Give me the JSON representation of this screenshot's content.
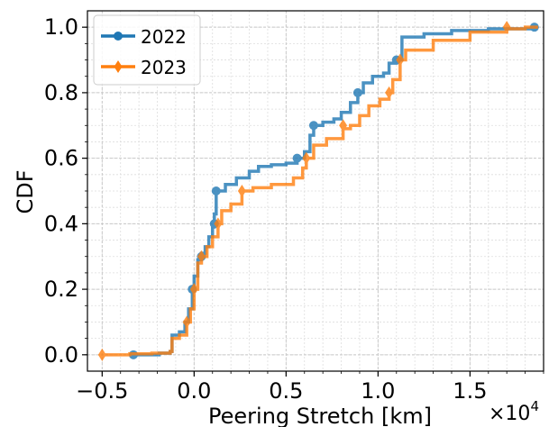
{
  "chart_data": {
    "type": "line",
    "title": "",
    "xlabel": "Peering Stretch [km]",
    "ylabel": "CDF",
    "x_multiplier_label": "×10",
    "x_multiplier_exp": "4",
    "xlim": [
      -5800,
      19000
    ],
    "ylim": [
      -0.05,
      1.05
    ],
    "x_ticks": [
      {
        "value": -5000,
        "label": "−0.5"
      },
      {
        "value": 0,
        "label": "0.0"
      },
      {
        "value": 5000,
        "label": "0.5"
      },
      {
        "value": 10000,
        "label": "1.0"
      },
      {
        "value": 15000,
        "label": "1.5"
      }
    ],
    "y_ticks": [
      {
        "value": 0.0,
        "label": "0.0"
      },
      {
        "value": 0.2,
        "label": "0.2"
      },
      {
        "value": 0.4,
        "label": "0.4"
      },
      {
        "value": 0.6,
        "label": "0.6"
      },
      {
        "value": 0.8,
        "label": "0.8"
      },
      {
        "value": 1.0,
        "label": "1.0"
      }
    ],
    "grid": true,
    "legend_position": "top-left",
    "series": [
      {
        "name": "2022",
        "color": "#1f77b4",
        "marker": "circle",
        "points": [
          [
            -3300,
            0.0
          ],
          [
            -2500,
            0.0
          ],
          [
            -1900,
            0.005
          ],
          [
            -1300,
            0.01
          ],
          [
            -1200,
            0.06
          ],
          [
            -800,
            0.07
          ],
          [
            -500,
            0.1
          ],
          [
            -300,
            0.14
          ],
          [
            -100,
            0.2
          ],
          [
            0,
            0.24
          ],
          [
            200,
            0.29
          ],
          [
            400,
            0.31
          ],
          [
            600,
            0.33
          ],
          [
            800,
            0.36
          ],
          [
            1000,
            0.39
          ],
          [
            1100,
            0.43
          ],
          [
            1200,
            0.5
          ],
          [
            1700,
            0.52
          ],
          [
            2300,
            0.54
          ],
          [
            3000,
            0.56
          ],
          [
            3500,
            0.575
          ],
          [
            4200,
            0.58
          ],
          [
            5000,
            0.585
          ],
          [
            5600,
            0.6
          ],
          [
            6000,
            0.62
          ],
          [
            6300,
            0.67
          ],
          [
            6500,
            0.7
          ],
          [
            7000,
            0.71
          ],
          [
            7600,
            0.72
          ],
          [
            8000,
            0.74
          ],
          [
            8500,
            0.77
          ],
          [
            8900,
            0.8
          ],
          [
            9200,
            0.83
          ],
          [
            9700,
            0.85
          ],
          [
            10300,
            0.86
          ],
          [
            10600,
            0.89
          ],
          [
            11000,
            0.9
          ],
          [
            11300,
            0.97
          ],
          [
            12500,
            0.98
          ],
          [
            14000,
            0.99
          ],
          [
            16000,
            0.995
          ],
          [
            18500,
            1.0
          ]
        ],
        "marker_points": [
          [
            -3300,
            0.0
          ],
          [
            -100,
            0.2
          ],
          [
            400,
            0.3
          ],
          [
            1100,
            0.4
          ],
          [
            1200,
            0.5
          ],
          [
            5600,
            0.6
          ],
          [
            6500,
            0.7
          ],
          [
            8900,
            0.8
          ],
          [
            11000,
            0.9
          ],
          [
            18500,
            1.0
          ]
        ]
      },
      {
        "name": "2023",
        "color": "#ff7f0e",
        "marker": "diamond",
        "points": [
          [
            -5000,
            0.0
          ],
          [
            -3500,
            0.003
          ],
          [
            -2300,
            0.005
          ],
          [
            -1300,
            0.01
          ],
          [
            -1200,
            0.05
          ],
          [
            -800,
            0.06
          ],
          [
            -400,
            0.1
          ],
          [
            -200,
            0.14
          ],
          [
            0,
            0.2
          ],
          [
            200,
            0.28
          ],
          [
            400,
            0.3
          ],
          [
            700,
            0.33
          ],
          [
            1000,
            0.36
          ],
          [
            1300,
            0.4
          ],
          [
            1500,
            0.44
          ],
          [
            2000,
            0.46
          ],
          [
            2600,
            0.5
          ],
          [
            3200,
            0.51
          ],
          [
            4200,
            0.52
          ],
          [
            5400,
            0.54
          ],
          [
            5900,
            0.57
          ],
          [
            6100,
            0.6
          ],
          [
            6500,
            0.64
          ],
          [
            7200,
            0.66
          ],
          [
            8100,
            0.69
          ],
          [
            8500,
            0.7
          ],
          [
            9000,
            0.73
          ],
          [
            9500,
            0.76
          ],
          [
            10100,
            0.78
          ],
          [
            10600,
            0.8
          ],
          [
            10800,
            0.84
          ],
          [
            11200,
            0.9
          ],
          [
            11500,
            0.93
          ],
          [
            13000,
            0.96
          ],
          [
            15000,
            0.985
          ],
          [
            17000,
            0.995
          ],
          [
            18000,
            1.0
          ],
          [
            18700,
            1.0
          ]
        ],
        "marker_points": [
          [
            -5000,
            0.0
          ],
          [
            -400,
            0.1
          ],
          [
            0,
            0.2
          ],
          [
            400,
            0.3
          ],
          [
            1300,
            0.4
          ],
          [
            2600,
            0.5
          ],
          [
            6100,
            0.6
          ],
          [
            8100,
            0.7
          ],
          [
            10600,
            0.8
          ],
          [
            11200,
            0.9
          ],
          [
            17000,
            1.0
          ]
        ]
      }
    ]
  }
}
